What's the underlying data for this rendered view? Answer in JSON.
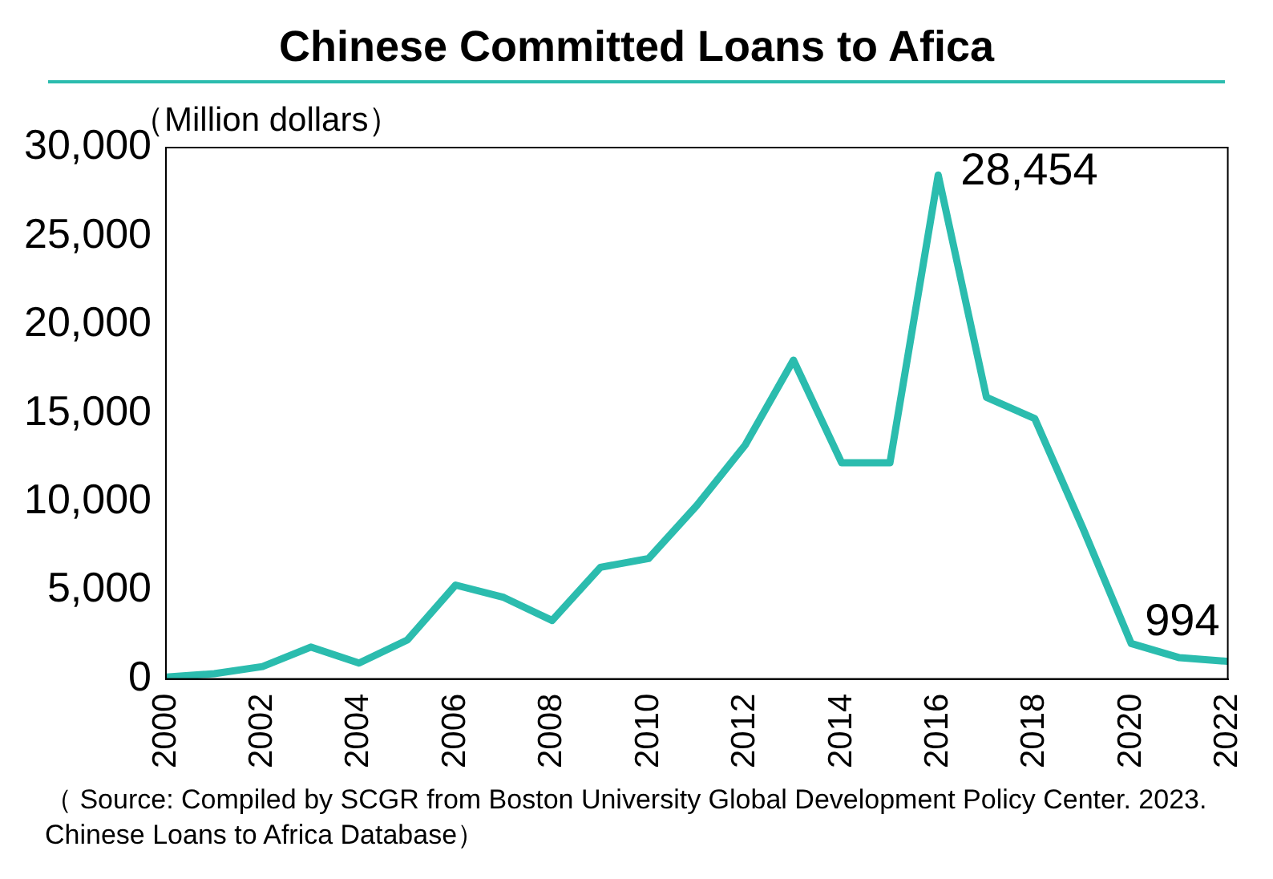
{
  "chart_data": {
    "type": "line",
    "title": "Chinese Committed Loans to Afica",
    "ylabel": "（Million dollars）",
    "x": [
      2000,
      2001,
      2002,
      2003,
      2004,
      2005,
      2006,
      2007,
      2008,
      2009,
      2010,
      2011,
      2012,
      2013,
      2014,
      2015,
      2016,
      2017,
      2018,
      2019,
      2020,
      2021,
      2022
    ],
    "series": [
      {
        "color": "#2bbcae",
        "values": [
          100,
          300,
          700,
          1800,
          900,
          2200,
          5300,
          4600,
          3300,
          6300,
          6800,
          9800,
          13200,
          18000,
          12200,
          12200,
          28454,
          15900,
          14700,
          8500,
          2000,
          1200,
          994
        ],
        "value_labels": [
          null,
          null,
          null,
          null,
          null,
          null,
          null,
          null,
          null,
          null,
          null,
          null,
          null,
          null,
          null,
          null,
          "28,454",
          null,
          null,
          null,
          null,
          null,
          "994"
        ]
      }
    ],
    "xlim": [
      2000,
      2022
    ],
    "xticks": [
      2000,
      2002,
      2004,
      2006,
      2008,
      2010,
      2012,
      2014,
      2016,
      2018,
      2020,
      2022
    ],
    "ylim": [
      0,
      30000
    ],
    "yticks": [
      {
        "value": 0,
        "label": "0"
      },
      {
        "value": 5000,
        "label": "5,000"
      },
      {
        "value": 10000,
        "label": "10,000"
      },
      {
        "value": 15000,
        "label": "15,000"
      },
      {
        "value": 20000,
        "label": "20,000"
      },
      {
        "value": 25000,
        "label": "25,000"
      },
      {
        "value": 30000,
        "label": "30,000"
      }
    ],
    "grid": false,
    "legend": false,
    "marker": "none",
    "line_style": "solid",
    "annotations": [
      "（ Source: Compiled by SCGR from Boston University Global Development Policy Center. 2023. Chinese Loans to Africa Database）"
    ]
  }
}
